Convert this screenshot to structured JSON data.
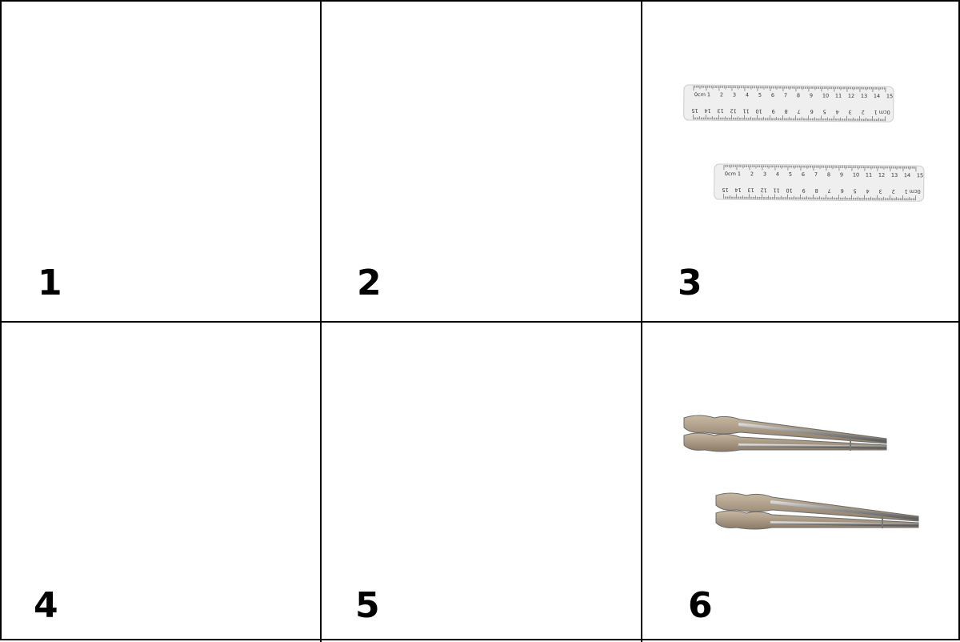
{
  "cells": [
    {
      "label": "1"
    },
    {
      "label": "2"
    },
    {
      "label": "3",
      "icon": "ruler-pair-icon"
    },
    {
      "label": "4"
    },
    {
      "label": "5"
    },
    {
      "label": "6",
      "icon": "tongs-pair-icon"
    }
  ],
  "ruler_top_ticks": [
    "0cm",
    "1",
    "2",
    "3",
    "4",
    "5",
    "6",
    "7",
    "8",
    "9",
    "10",
    "11",
    "12",
    "13",
    "14",
    "15"
  ],
  "ruler_bottom_ticks": [
    "15",
    "14",
    "13",
    "12",
    "11",
    "10",
    "9",
    "8",
    "7",
    "6",
    "5",
    "4",
    "3",
    "2",
    "1",
    "0cm"
  ],
  "colors": {
    "grid": "#000000",
    "ruler": "#eeeeee",
    "tongs": "#9a9a9a"
  }
}
